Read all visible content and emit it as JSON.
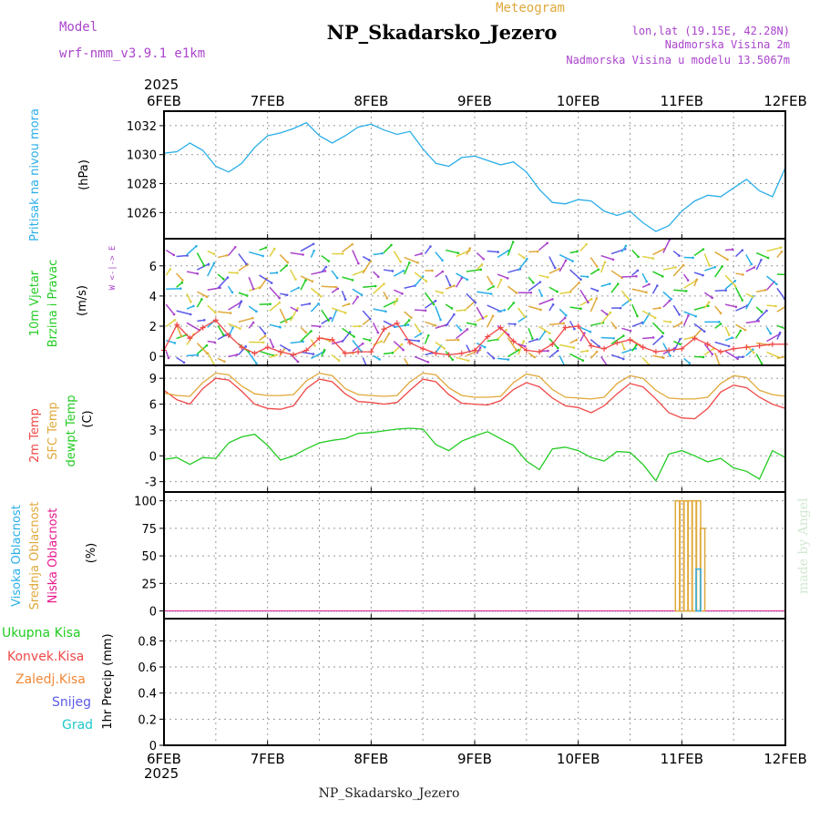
{
  "header": {
    "model_label": "Model",
    "model_value": "wrf-nmm_v3.9.1 e1km",
    "subtitle": "Meteogram",
    "station": "NP_Skadarsko_Jezero",
    "coords": "lon,lat (19.15E, 42.28N)",
    "elevation": "Nadmorska Visina 2m",
    "model_elevation": "Nadmorska Visina u modelu 13.5067m",
    "credit": "made by Angel",
    "footer_station": "NP_Skadarsko_Jezero"
  },
  "time_axis": {
    "year": "2025",
    "labels": [
      "6FEB",
      "7FEB",
      "8FEB",
      "9FEB",
      "10FEB",
      "11FEB",
      "12FEB"
    ]
  },
  "colors": {
    "pressure": "#29aee8",
    "temp2m": "#f04848",
    "sfc_temp": "#e0a83a",
    "dewpt": "#22cc22",
    "high_cloud": "#29aee8",
    "mid_cloud": "#e0a83a",
    "low_cloud": "#e8168c",
    "total_precip": "#22cc22",
    "convective": "#f04848",
    "frozen": "#f08838",
    "snow": "#5a5ae8",
    "hail": "#20c8c8",
    "wind_title": "#22cc22",
    "wind_sub": "#aa44cc"
  },
  "chart_data": [
    {
      "type": "line",
      "ylabel_title": "Pritisak na nivou mora",
      "ylabel_unit": "(hPa)",
      "yticks": [
        "1026",
        "1028",
        "1030",
        "1032"
      ],
      "ylim": [
        1024.2,
        1033
      ],
      "grid": true,
      "x_days": [
        0,
        0.125,
        0.25,
        0.375,
        0.5,
        0.625,
        0.75,
        0.875,
        1.0,
        1.125,
        1.25,
        1.375,
        1.5,
        1.625,
        1.75,
        1.875,
        2.0,
        2.125,
        2.25,
        2.375,
        2.5,
        2.625,
        2.75,
        2.875,
        3.0,
        3.125,
        3.25,
        3.375,
        3.5,
        3.625,
        3.75,
        3.875,
        4.0,
        4.125,
        4.25,
        4.375,
        4.5,
        4.625,
        4.75,
        4.875,
        5.0,
        5.125,
        5.25,
        5.375,
        5.5,
        5.625,
        5.75,
        5.875,
        6.0
      ],
      "series": [
        {
          "values": [
            1030.1,
            1030.2,
            1030.8,
            1030.3,
            1029.2,
            1028.8,
            1029.4,
            1030.5,
            1031.3,
            1031.5,
            1031.8,
            1032.2,
            1031.3,
            1030.8,
            1031.3,
            1031.9,
            1032.1,
            1031.7,
            1031.4,
            1031.6,
            1030.4,
            1029.4,
            1029.2,
            1029.8,
            1029.9,
            1029.6,
            1029.3,
            1029.5,
            1028.8,
            1027.6,
            1026.7,
            1026.6,
            1026.9,
            1026.8,
            1026.1,
            1025.8,
            1026.1,
            1025.3,
            1024.7,
            1025.1,
            1026.1,
            1026.8,
            1027.2,
            1027.1,
            1027.7,
            1028.3,
            1027.5,
            1027.1,
            1029.1
          ],
          "color": "#29aee8"
        }
      ]
    },
    {
      "type": "scatter",
      "ylabel_title": "10m Vjetar",
      "ylabel_sub": "Brzina i Pravac",
      "ylabel_unit": "(m/s)",
      "compass": "W <-|-> E",
      "yticks": [
        "0",
        "2",
        "4",
        "6"
      ],
      "ylim": [
        -0.6,
        7.8
      ],
      "grid": true,
      "x_days": [
        0,
        0.125,
        0.25,
        0.375,
        0.5,
        0.625,
        0.75,
        0.875,
        1.0,
        1.125,
        1.25,
        1.375,
        1.5,
        1.625,
        1.75,
        1.875,
        2.0,
        2.125,
        2.25,
        2.375,
        2.5,
        2.625,
        2.75,
        2.875,
        3.0,
        3.125,
        3.25,
        3.375,
        3.5,
        3.625,
        3.75,
        3.875,
        4.0,
        4.125,
        4.25,
        4.375,
        4.5,
        4.625,
        4.75,
        4.875,
        5.0,
        5.125,
        5.25,
        5.375,
        5.5,
        5.625,
        5.75,
        5.875,
        6.0
      ],
      "series": [
        {
          "values": [
            0.4,
            2.1,
            1.2,
            1.9,
            2.4,
            1.4,
            0.6,
            0.2,
            0.6,
            0.3,
            0.1,
            0.4,
            1.2,
            1.1,
            0.2,
            0.3,
            0.3,
            1.8,
            2.2,
            0.9,
            0.5,
            0.2,
            0.1,
            0.2,
            0.4,
            1.3,
            1.9,
            1.0,
            0.4,
            0.3,
            0.8,
            1.9,
            2.0,
            0.7,
            0.5,
            0.9,
            1.1,
            0.6,
            0.3,
            0.4,
            0.5,
            1.2,
            0.8,
            0.3,
            0.5,
            0.6,
            0.7,
            0.8,
            0.8
          ],
          "color": "#f04848"
        }
      ]
    },
    {
      "type": "line",
      "ylabel_title1": "2m Temp",
      "ylabel_title2": "SFC Temp",
      "ylabel_title3": "dewpt Temp",
      "ylabel_unit": "(C)",
      "yticks": [
        "-3",
        "0",
        "3",
        "6",
        "9"
      ],
      "ylim": [
        -4.2,
        10.5
      ],
      "grid": true,
      "x_days": [
        0,
        0.125,
        0.25,
        0.375,
        0.5,
        0.625,
        0.75,
        0.875,
        1.0,
        1.125,
        1.25,
        1.375,
        1.5,
        1.625,
        1.75,
        1.875,
        2.0,
        2.125,
        2.25,
        2.375,
        2.5,
        2.625,
        2.75,
        2.875,
        3.0,
        3.125,
        3.25,
        3.375,
        3.5,
        3.625,
        3.75,
        3.875,
        4.0,
        4.125,
        4.25,
        4.375,
        4.5,
        4.625,
        4.75,
        4.875,
        5.0,
        5.125,
        5.25,
        5.375,
        5.5,
        5.625,
        5.75,
        5.875,
        6.0
      ],
      "series": [
        {
          "name": "2m Temp",
          "values": [
            7.6,
            6.5,
            6.0,
            7.8,
            9.0,
            8.8,
            7.5,
            6.0,
            5.5,
            5.4,
            5.8,
            7.8,
            8.9,
            8.6,
            7.2,
            6.3,
            6.2,
            6.0,
            6.2,
            7.6,
            8.9,
            8.6,
            7.1,
            6.1,
            6.0,
            5.9,
            6.4,
            7.7,
            8.5,
            8.0,
            6.7,
            5.8,
            5.6,
            5.0,
            5.8,
            7.2,
            8.4,
            8.0,
            6.6,
            5.0,
            4.4,
            4.3,
            5.5,
            7.4,
            8.2,
            7.9,
            6.8,
            6.0,
            5.5
          ],
          "color": "#f04848"
        },
        {
          "name": "SFC Temp",
          "values": [
            7.3,
            7.0,
            6.9,
            8.5,
            9.6,
            9.4,
            8.1,
            7.2,
            7.0,
            7.0,
            7.1,
            8.7,
            9.6,
            9.3,
            7.8,
            7.1,
            7.0,
            6.9,
            7.0,
            8.6,
            9.6,
            9.4,
            7.9,
            7.0,
            6.8,
            6.8,
            6.9,
            8.5,
            9.5,
            9.2,
            7.7,
            6.8,
            6.7,
            6.6,
            6.8,
            8.4,
            9.3,
            9.0,
            7.6,
            6.7,
            6.6,
            6.6,
            6.8,
            8.4,
            9.3,
            9.1,
            7.6,
            7.1,
            6.9
          ],
          "color": "#e0a83a"
        },
        {
          "name": "dewpt Temp",
          "values": [
            -0.4,
            -0.2,
            -1.0,
            -0.2,
            -0.3,
            1.5,
            2.2,
            2.5,
            1.2,
            -0.5,
            0.0,
            0.8,
            1.5,
            1.8,
            2.0,
            2.6,
            2.7,
            2.9,
            3.1,
            3.2,
            3.1,
            1.3,
            0.6,
            1.7,
            2.3,
            2.8,
            2.0,
            1.2,
            -0.6,
            -1.6,
            0.8,
            1.0,
            0.6,
            -0.2,
            -0.6,
            0.5,
            0.4,
            -1.0,
            -2.9,
            0.2,
            0.6,
            0.0,
            -0.7,
            -0.3,
            -1.4,
            -1.8,
            -2.7,
            0.6,
            -0.2
          ],
          "color": "#22cc22"
        }
      ]
    },
    {
      "type": "bar",
      "ylabel_title1": "Visoka Oblacnost",
      "ylabel_title2": "Srednja Oblacnost",
      "ylabel_title3": "Niska Oblacnost",
      "ylabel_unit": "(%)",
      "yticks": [
        "0",
        "25",
        "50",
        "75",
        "100"
      ],
      "ylim": [
        -7,
        108
      ],
      "grid": true,
      "series": [
        {
          "name": "Srednja Oblacnost",
          "x_days": [
            4.96,
            5.0,
            5.04,
            5.08,
            5.12,
            5.16,
            5.2
          ],
          "values": [
            100,
            100,
            100,
            100,
            100,
            100,
            75
          ],
          "color": "#e0a83a"
        },
        {
          "name": "Visoka Oblacnost",
          "x_days": [
            5.16
          ],
          "values": [
            38
          ],
          "color": "#29aee8"
        }
      ]
    },
    {
      "type": "line",
      "ylabel_title": "1hr Precip",
      "ylabel_unit": "(mm)",
      "yticks": [
        "0",
        "0.2",
        "0.4",
        "0.6",
        "0.8"
      ],
      "ylim": [
        0,
        0.97
      ],
      "grid": true,
      "legend": [
        "Ukupna Kisa",
        "Konvek.Kisa",
        "Zaledj.Kisa",
        "Snijeg",
        "Grad"
      ],
      "series": [
        {
          "name": "Ukupna Kisa",
          "values": [
            0,
            0,
            0,
            0,
            0,
            0,
            0
          ],
          "color": "#22cc22"
        }
      ]
    }
  ]
}
